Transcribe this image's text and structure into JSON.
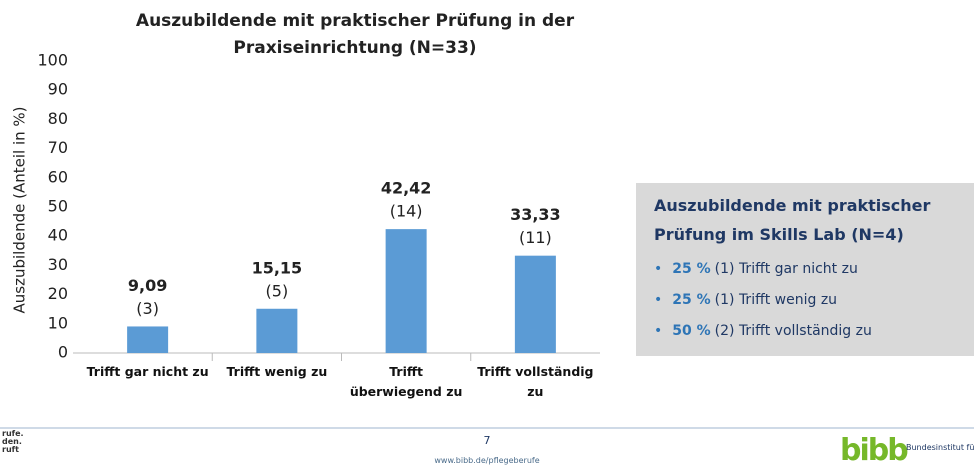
{
  "chart_data": {
    "type": "bar",
    "title": "Auszubildende mit praktischer Prüfung in der Praxiseinrichtung (N=33)",
    "ylabel": "Auszubildende (Anteil in %)",
    "categories": [
      "Trifft gar nicht zu",
      "Trifft wenig zu",
      "Trifft überwiegend zu",
      "Trifft vollständig zu"
    ],
    "values": [
      9.09,
      15.15,
      42.42,
      33.33
    ],
    "value_labels": [
      "9,09",
      "15,15",
      "42,42",
      "33,33"
    ],
    "count_labels": [
      "(3)",
      "(5)",
      "(14)",
      "(11)"
    ],
    "color": "#5b9bd5",
    "ylim": [
      0,
      100
    ],
    "yticks": [
      0,
      10,
      20,
      30,
      40,
      50,
      60,
      70,
      80,
      90,
      100
    ],
    "grid": false
  },
  "skills_lab": {
    "title": "Auszubildende mit praktischer Prüfung im Skills Lab (N=4)",
    "items": [
      {
        "share": "25 %",
        "detail": "(1) Trifft gar nicht zu"
      },
      {
        "share": "25 %",
        "detail": "(1) Trifft wenig zu"
      },
      {
        "share": "50 %",
        "detail": "(2) Trifft vollständig zu"
      }
    ]
  },
  "footer": {
    "left_fragments": [
      "rufe.",
      "den.",
      "ruft"
    ],
    "page_number": "7",
    "url": "www.bibb.de/pflegeberufe",
    "logo": "bibb",
    "institute": "Bundesinstitut für Berufsbildung"
  }
}
